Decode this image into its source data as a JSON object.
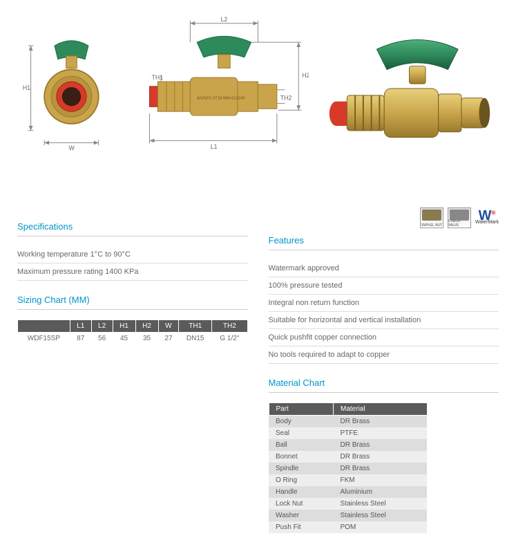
{
  "diagrams": {
    "labels": {
      "H1": "H1",
      "W": "W",
      "L1": "L1",
      "L2": "L2",
      "H2": "H2",
      "TH1": "TH1",
      "TH2": "TH2"
    },
    "colors": {
      "brass": "#c9a44a",
      "brass_dark": "#9a7a2e",
      "handle": "#2e8a5a",
      "handle_dark": "#1f6b44",
      "cap": "#d83a2a",
      "dim": "#888"
    }
  },
  "specifications": {
    "title": "Specifications",
    "lines": [
      "Working temperature 1°C to 90°C",
      "Maximum pressure rating 1400 KPa"
    ]
  },
  "sizing": {
    "title": "Sizing Chart (MM)",
    "headers": [
      "",
      "L1",
      "L2",
      "H1",
      "H2",
      "W",
      "TH1",
      "TH2"
    ],
    "rows": [
      [
        "WDF15SP",
        "87",
        "56",
        "45",
        "35",
        "27",
        "DN15",
        "G 1/2\""
      ]
    ]
  },
  "features": {
    "title": "Features",
    "lines": [
      "Watermark approved",
      "100% pressure tested",
      "Integral non return function",
      "Suitable for horizontal and vertical installation",
      "Quick pushfit copper connection",
      "No tools required to adapt to copper"
    ]
  },
  "materials": {
    "title": "Material Chart",
    "headers": [
      "Part",
      "Material"
    ],
    "rows": [
      [
        "Body",
        "DR Brass"
      ],
      [
        "Seal",
        "PTFE"
      ],
      [
        "Ball",
        "DR Brass"
      ],
      [
        "Bonnet",
        "DR Brass"
      ],
      [
        "Spindle",
        "DR Brass"
      ],
      [
        "O Ring",
        "FKM"
      ],
      [
        "Handle",
        "Aluminium"
      ],
      [
        "Lock Nut",
        "Stainless Steel"
      ],
      [
        "Washer",
        "Stainless Steel"
      ],
      [
        "Push Fit",
        "POM"
      ]
    ]
  },
  "badges": {
    "b1": "SWIVEL NUT",
    "b2": "CHECK VALVE",
    "wm": "WaterMark"
  }
}
